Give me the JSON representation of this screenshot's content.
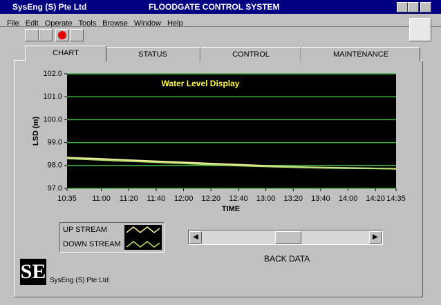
{
  "window": {
    "title": "SysEng (S) Pte Ltd",
    "app_title": "FLOODGATE CONTROL SYSTEM"
  },
  "menu": [
    "File",
    "Edit",
    "Operate",
    "Tools",
    "Browse",
    "Window",
    "Help"
  ],
  "tabs": [
    "CHART",
    "STATUS",
    "CONTROL",
    "MAINTENANCE"
  ],
  "chart_data": {
    "type": "line",
    "title": "Water Level Display",
    "y_label": "LSD (m)",
    "x_label": "TIME",
    "x": [
      635,
      655,
      675,
      695,
      715,
      735,
      755,
      775,
      795,
      815,
      835,
      855,
      875
    ],
    "series": [
      {
        "name": "UP STREAM",
        "color": "#f4eea0",
        "values": [
          98.35,
          98.3,
          98.25,
          98.2,
          98.15,
          98.1,
          98.05,
          98.0,
          97.95,
          97.92,
          97.9,
          97.88,
          97.85
        ]
      },
      {
        "name": "DOWN STREAM",
        "color": "#b8e070",
        "values": [
          98.3,
          98.25,
          98.2,
          98.15,
          98.1,
          98.05,
          98.0,
          97.96,
          97.93,
          97.9,
          97.88,
          97.87,
          97.86
        ]
      }
    ],
    "xlim": [
      635,
      875
    ],
    "xticks": [
      {
        "value": 635,
        "label": "10:35"
      },
      {
        "value": 660,
        "label": "11:00"
      },
      {
        "value": 680,
        "label": "11:20"
      },
      {
        "value": 700,
        "label": "11:40"
      },
      {
        "value": 720,
        "label": "12:00"
      },
      {
        "value": 740,
        "label": "12:20"
      },
      {
        "value": 760,
        "label": "12:40"
      },
      {
        "value": 780,
        "label": "13:00"
      },
      {
        "value": 800,
        "label": "13:20"
      },
      {
        "value": 820,
        "label": "13:40"
      },
      {
        "value": 840,
        "label": "14:00"
      },
      {
        "value": 860,
        "label": "14:20"
      },
      {
        "value": 875,
        "label": "14:35"
      }
    ],
    "ylim": [
      97,
      102
    ],
    "yticks": [
      {
        "value": 97,
        "label": "97.0"
      },
      {
        "value": 98,
        "label": "98.0"
      },
      {
        "value": 99,
        "label": "99.0"
      },
      {
        "value": 100,
        "label": "100.0"
      },
      {
        "value": 101,
        "label": "101.0"
      },
      {
        "value": 102,
        "label": "102.0"
      }
    ],
    "grid": true,
    "grid_color": "#3fae3f",
    "background": "#000000"
  },
  "scrollbar_label": "BACK DATA",
  "footer": {
    "company": "SysEng (S) Pte Ltd"
  }
}
